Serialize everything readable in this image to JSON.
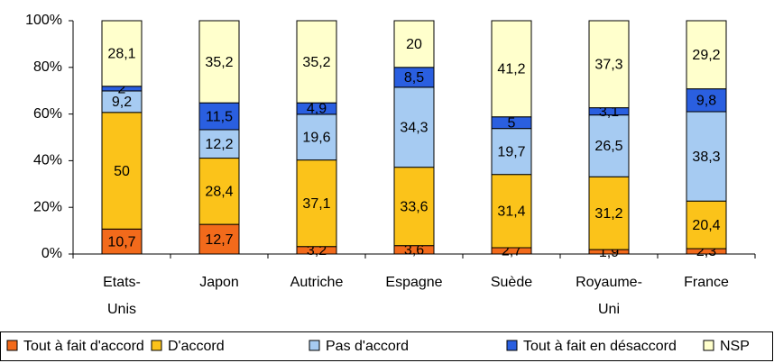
{
  "chart_data": {
    "type": "stacked_bar",
    "categories": [
      "Etats-Unis",
      "Japon",
      "Autriche",
      "Espagne",
      "Suède",
      "Royaume-Uni",
      "France"
    ],
    "series": [
      {
        "name": "Tout à fait d'accord",
        "color": "#f26a1b",
        "values": [
          10.7,
          12.7,
          3.2,
          3.6,
          2.7,
          1.9,
          2.3
        ],
        "value_labels": [
          "10,7",
          "12,7",
          "3,2",
          "3,6",
          "2,7",
          "1,9",
          "2,3"
        ]
      },
      {
        "name": "D'accord",
        "color": "#fbc31a",
        "values": [
          50,
          28.4,
          37.1,
          33.6,
          31.4,
          31.2,
          20.4
        ],
        "value_labels": [
          "50",
          "28,4",
          "37,1",
          "33,6",
          "31,4",
          "31,2",
          "20,4"
        ]
      },
      {
        "name": "Pas d'accord",
        "color": "#a6cbf2",
        "values": [
          9.2,
          12.2,
          19.6,
          34.3,
          19.7,
          26.5,
          38.3
        ],
        "value_labels": [
          "9,2",
          "12,2",
          "19,6",
          "34,3",
          "19,7",
          "26,5",
          "38,3"
        ]
      },
      {
        "name": "Tout à fait en désaccord",
        "color": "#2a5fe0",
        "values": [
          2,
          11.5,
          4.9,
          8.5,
          5,
          3.1,
          9.8
        ],
        "value_labels": [
          "2",
          "11,5",
          "4,9",
          "8,5",
          "5",
          "3,1",
          "9,8"
        ]
      },
      {
        "name": "NSP",
        "color": "#ffffcc",
        "values": [
          28.1,
          35.2,
          35.2,
          20,
          41.2,
          37.3,
          29.2
        ],
        "value_labels": [
          "28,1",
          "35,2",
          "35,2",
          "20",
          "41,2",
          "37,3",
          "29,2"
        ]
      }
    ],
    "ylim": [
      0,
      100
    ],
    "yticks": [
      {
        "value": 0,
        "label": "0%"
      },
      {
        "value": 20,
        "label": "20%"
      },
      {
        "value": 40,
        "label": "40%"
      },
      {
        "value": 60,
        "label": "60%"
      },
      {
        "value": 80,
        "label": "80%"
      },
      {
        "value": 100,
        "label": "100%"
      }
    ],
    "grid": false,
    "legend": "bottom"
  }
}
